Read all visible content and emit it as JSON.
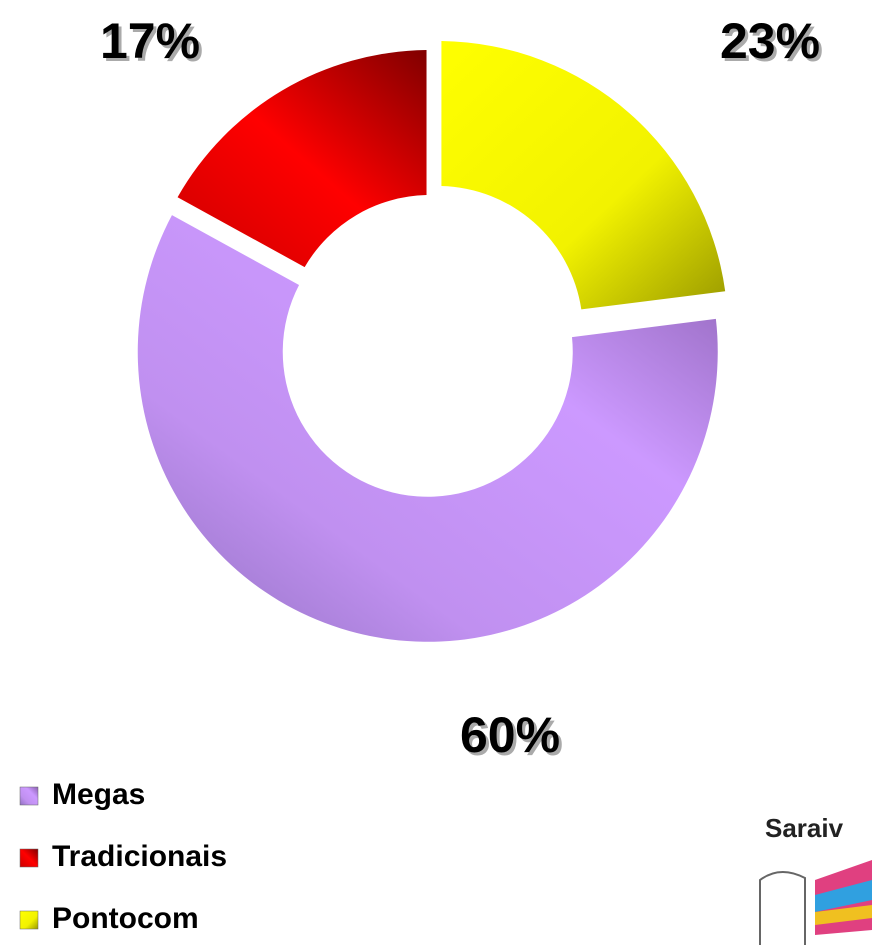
{
  "chart_data": {
    "type": "donut",
    "categories": [
      "Pontocom",
      "Megas",
      "Tradicionais"
    ],
    "values": [
      23,
      60,
      17
    ],
    "value_labels": [
      "23%",
      "60%",
      "17%"
    ],
    "colors": [
      "#ffff00",
      "#cc99ff",
      "#ff0000"
    ],
    "exploded": [
      true,
      true,
      false
    ],
    "logo": "Saraiv"
  }
}
